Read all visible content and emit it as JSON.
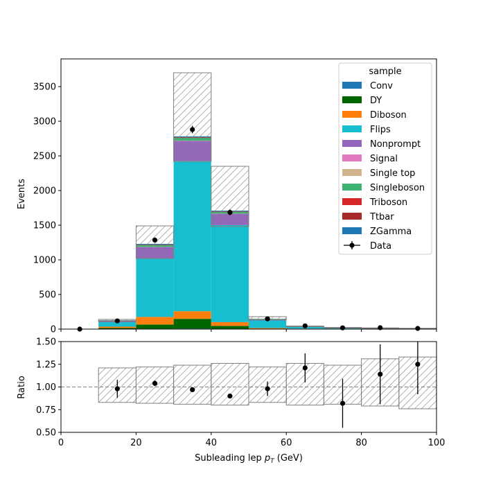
{
  "chart_data": [
    {
      "type": "bar",
      "panel": "main",
      "stacked": true,
      "ylabel": "Events",
      "xlim": [
        0,
        100
      ],
      "ylim": [
        0,
        3900
      ],
      "yticks": [
        0,
        500,
        1000,
        1500,
        2000,
        2500,
        3000,
        3500
      ],
      "bin_edges": [
        0,
        10,
        20,
        30,
        40,
        50,
        60,
        70,
        80,
        90,
        100
      ],
      "legend": {
        "title": "sample",
        "placement": "top-right"
      },
      "series": [
        {
          "name": "Conv",
          "color": "#1f77b4",
          "values": [
            0,
            3,
            6,
            8,
            6,
            2,
            1,
            0,
            0,
            0
          ]
        },
        {
          "name": "DY",
          "color": "#006400",
          "values": [
            0,
            12,
            60,
            140,
            40,
            3,
            1,
            1,
            1,
            0
          ]
        },
        {
          "name": "Diboson",
          "color": "#ff7f0e",
          "values": [
            0,
            20,
            110,
            110,
            55,
            10,
            5,
            3,
            2,
            1
          ]
        },
        {
          "name": "Flips",
          "color": "#17becf",
          "values": [
            0,
            65,
            840,
            2170,
            1400,
            110,
            25,
            6,
            4,
            3
          ]
        },
        {
          "name": "Nonprompt",
          "color": "#9467bd",
          "values": [
            0,
            20,
            170,
            290,
            165,
            15,
            3,
            2,
            1,
            1
          ]
        },
        {
          "name": "Signal",
          "color": "#e377c2",
          "values": [
            0,
            0,
            0,
            0,
            0,
            0,
            0,
            0,
            0,
            0
          ]
        },
        {
          "name": "Single top",
          "color": "#d2b48c",
          "values": [
            0,
            1,
            2,
            3,
            2,
            1,
            1,
            1,
            1,
            1
          ]
        },
        {
          "name": "Singleboson",
          "color": "#3cb371",
          "values": [
            0,
            5,
            25,
            40,
            25,
            5,
            2,
            1,
            1,
            1
          ]
        },
        {
          "name": "Triboson",
          "color": "#d62728",
          "values": [
            0,
            0,
            1,
            1,
            1,
            0,
            0,
            0,
            0,
            0
          ]
        },
        {
          "name": "Ttbar",
          "color": "#a52a2a",
          "values": [
            0,
            2,
            6,
            8,
            6,
            2,
            2,
            2,
            1,
            1
          ]
        },
        {
          "name": "ZGamma",
          "color": "#1f77b4",
          "values": [
            0,
            2,
            10,
            12,
            10,
            2,
            1,
            0,
            0,
            0
          ]
        }
      ],
      "uncertainty_total": {
        "label": "hatched",
        "up": [
          0,
          140,
          1490,
          3700,
          2350,
          180,
          45,
          25,
          18,
          12
        ],
        "down": [
          0,
          110,
          1020,
          2420,
          1480,
          135,
          33,
          16,
          10,
          7
        ]
      },
      "data": {
        "name": "Data",
        "x": [
          5,
          15,
          25,
          35,
          45,
          55,
          65,
          75,
          85,
          95
        ],
        "y": [
          0,
          118,
          1285,
          2880,
          1685,
          148,
          47,
          18,
          20,
          10
        ],
        "yerr": [
          0,
          11,
          36,
          54,
          41,
          12,
          7,
          4,
          4,
          3
        ]
      }
    },
    {
      "type": "scatter",
      "panel": "ratio",
      "xlabel": "Subleading lep p_T (GeV)",
      "ylabel": "Ratio",
      "xlim": [
        0,
        100
      ],
      "ylim": [
        0.5,
        1.5
      ],
      "xticks": [
        0,
        20,
        40,
        60,
        80,
        100
      ],
      "yticks": [
        "0.50",
        "0.75",
        "1.00",
        "1.25",
        "1.50"
      ],
      "reference_line": 1.0,
      "uncertainty_band": {
        "up": [
          1.0,
          1.21,
          1.22,
          1.24,
          1.26,
          1.22,
          1.26,
          1.24,
          1.31,
          1.33
        ],
        "down": [
          1.0,
          0.83,
          0.82,
          0.81,
          0.8,
          0.83,
          0.8,
          0.81,
          0.79,
          0.76
        ]
      },
      "points": {
        "x": [
          15,
          25,
          35,
          45,
          55,
          65,
          75,
          85,
          95
        ],
        "y": [
          0.98,
          1.04,
          0.97,
          0.9,
          0.98,
          1.21,
          0.82,
          1.14,
          1.25
        ],
        "yerr": [
          0.1,
          0.03,
          0.02,
          0.02,
          0.08,
          0.16,
          0.27,
          0.33,
          0.33
        ]
      }
    }
  ]
}
